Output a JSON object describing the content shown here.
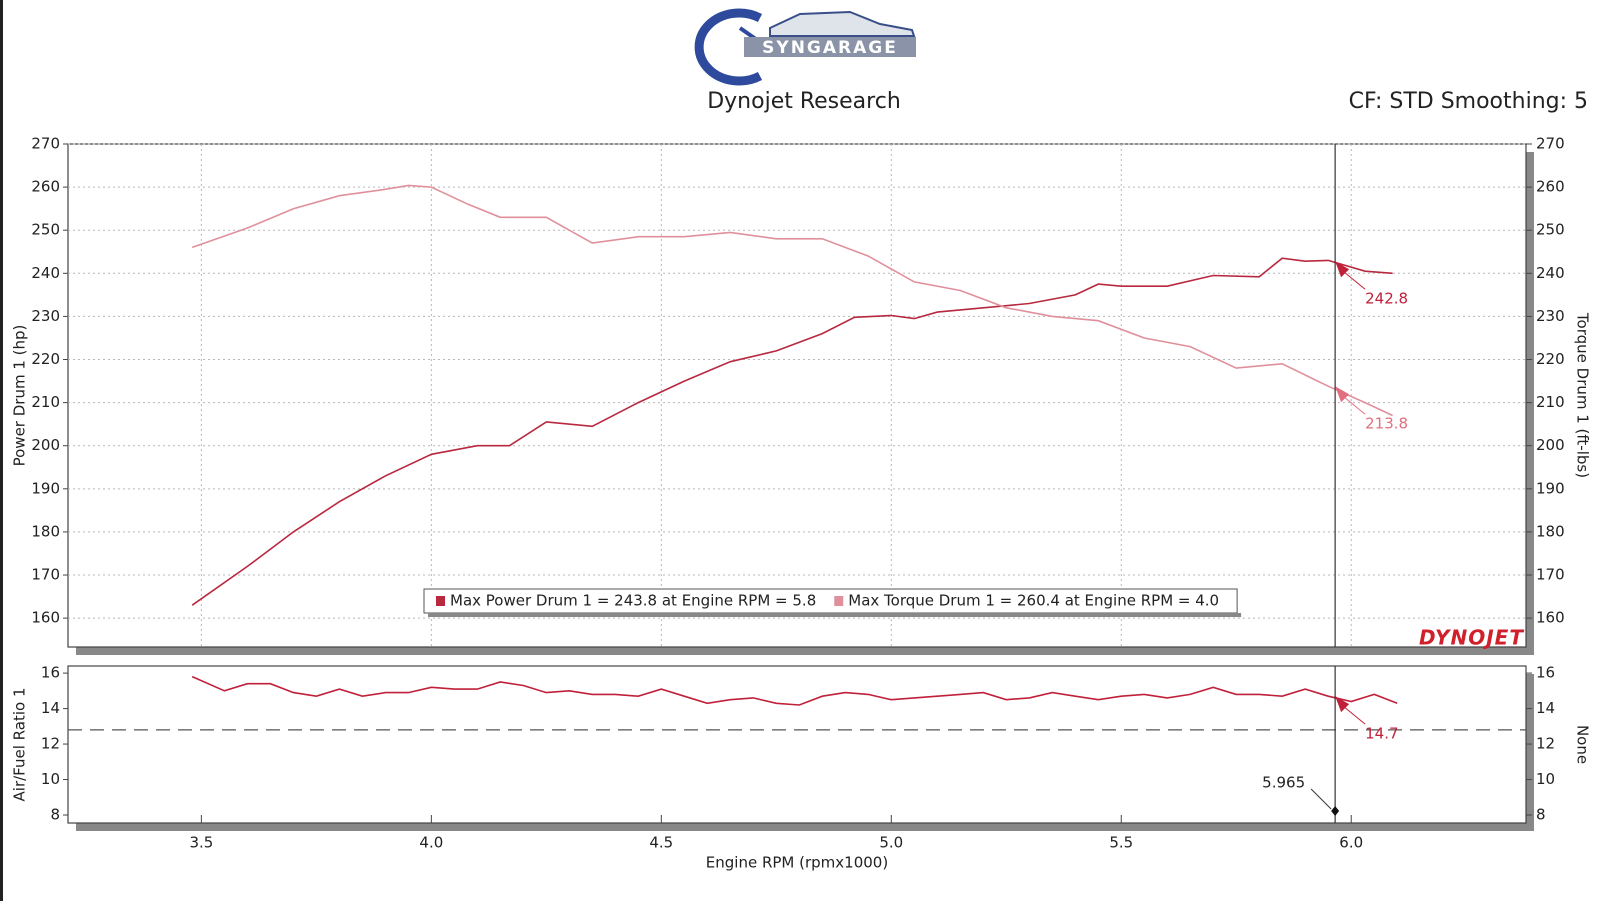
{
  "chart_data": [
    {
      "type": "line",
      "logo": "SYNGARAGE",
      "title": "Dynojet Research",
      "subtitle": "CF: STD Smoothing: 5",
      "watermark": "DYNOJET",
      "y_label": "Power Drum 1 (hp)",
      "y2_label": "Torque Drum 1 (ft-lbs)",
      "xlim": [
        3.21,
        6.38
      ],
      "ylim": [
        153.3,
        270
      ],
      "y2lim": [
        153.3,
        270
      ],
      "yticks": [
        160,
        170,
        180,
        190,
        200,
        210,
        220,
        230,
        240,
        250,
        260,
        270
      ],
      "y2ticks": [
        160,
        170,
        180,
        190,
        200,
        210,
        220,
        230,
        240,
        250,
        260,
        270
      ],
      "grid": true,
      "series": [
        {
          "name": "Max Power Drum 1 = 243.8 at Engine RPM = 5.8",
          "color": "#b8283e",
          "x": [
            3.48,
            3.6,
            3.7,
            3.8,
            3.9,
            4.0,
            4.1,
            4.17,
            4.25,
            4.35,
            4.45,
            4.55,
            4.65,
            4.75,
            4.85,
            4.92,
            5.0,
            5.05,
            5.1,
            5.2,
            5.3,
            5.4,
            5.45,
            5.5,
            5.6,
            5.7,
            5.8,
            5.85,
            5.9,
            5.95,
            6.03,
            6.09
          ],
          "values": [
            163,
            172,
            180,
            187,
            193,
            198,
            200,
            200,
            205.5,
            204.5,
            210,
            215,
            219.5,
            222,
            226,
            229.8,
            230.2,
            229.5,
            231,
            232,
            233,
            235,
            237.5,
            237,
            237,
            239.5,
            239.2,
            243.5,
            242.8,
            243,
            240.5,
            240
          ]
        },
        {
          "name": "Max Torque Drum 1 = 260.4 at Engine RPM = 4.0",
          "color": "#e0909c",
          "axis": "y2",
          "x": [
            3.48,
            3.6,
            3.7,
            3.8,
            3.9,
            3.95,
            4.0,
            4.08,
            4.15,
            4.25,
            4.35,
            4.45,
            4.55,
            4.65,
            4.75,
            4.85,
            4.95,
            5.05,
            5.15,
            5.25,
            5.35,
            5.45,
            5.55,
            5.65,
            5.75,
            5.85,
            5.95,
            6.03,
            6.09
          ],
          "values": [
            246,
            250.5,
            255,
            258,
            259.5,
            260.4,
            260,
            256,
            253,
            253,
            247,
            248.5,
            248.5,
            249.5,
            248,
            248,
            244,
            238,
            236,
            232,
            230,
            229,
            225,
            223,
            218,
            219,
            213.8,
            210,
            207
          ]
        }
      ],
      "annotations": [
        {
          "x": 5.965,
          "value": 242.8,
          "color": "#c0203a"
        },
        {
          "x": 5.965,
          "value": 213.8,
          "color": "#e07080",
          "axis": "y2"
        }
      ]
    },
    {
      "type": "line",
      "y_label": "Air/Fuel Ratio 1",
      "y2_label": "None",
      "x_label": "Engine RPM (rpmx1000)",
      "xlim": [
        3.21,
        6.38
      ],
      "ylim": [
        7.55,
        16.4
      ],
      "y2lim": [
        7.55,
        16.4
      ],
      "yticks": [
        8,
        10,
        12,
        14,
        16
      ],
      "y2ticks": [
        8,
        10,
        12,
        14,
        16
      ],
      "xticks": [
        3.5,
        {
          "value": 4,
          "label": "4.0"
        },
        4.5,
        {
          "value": 5,
          "label": "5.0"
        },
        5.5,
        {
          "value": 6,
          "label": "6.0"
        }
      ],
      "grid": false,
      "reference_line": 12.8,
      "cursor_x": 5.965,
      "series": [
        {
          "color": "#c0203a",
          "x": [
            3.48,
            3.55,
            3.6,
            3.65,
            3.7,
            3.75,
            3.8,
            3.85,
            3.9,
            3.95,
            4.0,
            4.05,
            4.1,
            4.15,
            4.2,
            4.25,
            4.3,
            4.35,
            4.4,
            4.45,
            4.5,
            4.55,
            4.6,
            4.65,
            4.7,
            4.75,
            4.8,
            4.85,
            4.9,
            4.95,
            5.0,
            5.05,
            5.1,
            5.15,
            5.2,
            5.25,
            5.3,
            5.35,
            5.4,
            5.45,
            5.5,
            5.55,
            5.6,
            5.65,
            5.7,
            5.75,
            5.8,
            5.85,
            5.9,
            5.95,
            6.0,
            6.05,
            6.1
          ],
          "values": [
            15.8,
            15.0,
            15.4,
            15.4,
            14.9,
            14.7,
            15.1,
            14.7,
            14.9,
            14.9,
            15.2,
            15.1,
            15.1,
            15.5,
            15.3,
            14.9,
            15.0,
            14.8,
            14.8,
            14.7,
            15.1,
            14.7,
            14.3,
            14.5,
            14.6,
            14.3,
            14.2,
            14.7,
            14.9,
            14.8,
            14.5,
            14.6,
            14.7,
            14.8,
            14.9,
            14.5,
            14.6,
            14.9,
            14.7,
            14.5,
            14.7,
            14.8,
            14.6,
            14.8,
            15.2,
            14.8,
            14.8,
            14.7,
            15.1,
            14.7,
            14.4,
            14.8,
            14.3
          ]
        }
      ],
      "annotations": [
        {
          "x": 5.965,
          "value": 14.7,
          "color": "#c0203a"
        }
      ]
    }
  ]
}
